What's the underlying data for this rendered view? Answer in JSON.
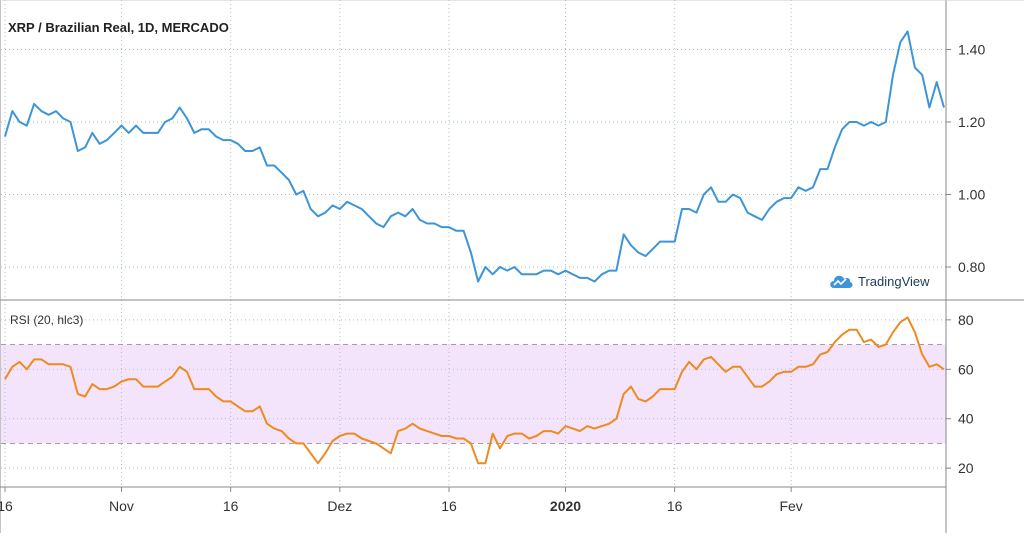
{
  "chart_data": {
    "type": "line",
    "title": "XRP / Brazilian Real, 1D, MERCADO",
    "colors": {
      "price_line": "#3d95d8",
      "rsi_line": "#ef8a1f",
      "rsi_band_fill": "#f3e4fb",
      "grid": "#a8c0cc",
      "axis_text": "#333333"
    },
    "x_ticks": [
      "16",
      "Nov",
      "16",
      "Dez",
      "16",
      "2020",
      "16",
      "Fev"
    ],
    "x_tick_index": [
      0,
      16,
      31,
      46,
      61,
      77,
      92,
      108
    ],
    "price_panel": {
      "ylim": [
        0.72,
        1.52
      ],
      "y_ticks": [
        "0.80",
        "1.00",
        "1.20",
        "1.40"
      ],
      "y_tick_values": [
        0.8,
        1.0,
        1.2,
        1.4
      ],
      "values": [
        1.16,
        1.23,
        1.2,
        1.19,
        1.25,
        1.23,
        1.22,
        1.23,
        1.21,
        1.2,
        1.12,
        1.13,
        1.17,
        1.14,
        1.15,
        1.17,
        1.19,
        1.17,
        1.19,
        1.17,
        1.17,
        1.17,
        1.2,
        1.21,
        1.24,
        1.21,
        1.17,
        1.18,
        1.18,
        1.16,
        1.15,
        1.15,
        1.14,
        1.12,
        1.12,
        1.13,
        1.08,
        1.08,
        1.06,
        1.04,
        1.0,
        1.01,
        0.96,
        0.94,
        0.95,
        0.97,
        0.96,
        0.98,
        0.97,
        0.96,
        0.94,
        0.92,
        0.91,
        0.94,
        0.95,
        0.94,
        0.96,
        0.93,
        0.92,
        0.92,
        0.91,
        0.91,
        0.9,
        0.9,
        0.84,
        0.76,
        0.8,
        0.78,
        0.8,
        0.79,
        0.8,
        0.78,
        0.78,
        0.78,
        0.79,
        0.79,
        0.78,
        0.79,
        0.78,
        0.77,
        0.77,
        0.76,
        0.78,
        0.79,
        0.79,
        0.89,
        0.86,
        0.84,
        0.83,
        0.85,
        0.87,
        0.87,
        0.87,
        0.96,
        0.96,
        0.95,
        1.0,
        1.02,
        0.98,
        0.98,
        1.0,
        0.99,
        0.95,
        0.94,
        0.93,
        0.96,
        0.98,
        0.99,
        0.99,
        1.02,
        1.01,
        1.02,
        1.07,
        1.07,
        1.13,
        1.18,
        1.2,
        1.2,
        1.19,
        1.2,
        1.19,
        1.2,
        1.33,
        1.42,
        1.45,
        1.35,
        1.33,
        1.24,
        1.31,
        1.24
      ]
    },
    "rsi_panel": {
      "label": "RSI (20, hlc3)",
      "ylim": [
        14,
        86
      ],
      "band": [
        30,
        70
      ],
      "y_ticks": [
        "20",
        "40",
        "60",
        "80"
      ],
      "y_tick_values": [
        20,
        40,
        60,
        80
      ],
      "values": [
        56,
        61,
        63,
        60,
        64,
        64,
        62,
        62,
        62,
        61,
        50,
        49,
        54,
        52,
        52,
        53,
        55,
        56,
        56,
        53,
        53,
        53,
        55,
        57,
        61,
        59,
        52,
        52,
        52,
        49,
        47,
        47,
        45,
        43,
        43,
        45,
        38,
        36,
        35,
        32,
        30,
        30,
        26,
        22,
        26,
        31,
        33,
        34,
        34,
        32,
        31,
        30,
        28,
        26,
        35,
        36,
        38,
        36,
        35,
        34,
        33,
        33,
        32,
        32,
        30,
        22,
        22,
        34,
        28,
        33,
        34,
        34,
        32,
        33,
        35,
        35,
        34,
        37,
        36,
        35,
        37,
        36,
        37,
        38,
        40,
        50,
        53,
        48,
        47,
        49,
        52,
        52,
        52,
        59,
        63,
        60,
        64,
        65,
        62,
        59,
        61,
        61,
        57,
        53,
        53,
        55,
        58,
        59,
        59,
        61,
        61,
        62,
        66,
        67,
        71,
        74,
        76,
        76,
        71,
        72,
        69,
        70,
        75,
        79,
        81,
        75,
        66,
        61,
        62,
        60
      ]
    }
  }
}
